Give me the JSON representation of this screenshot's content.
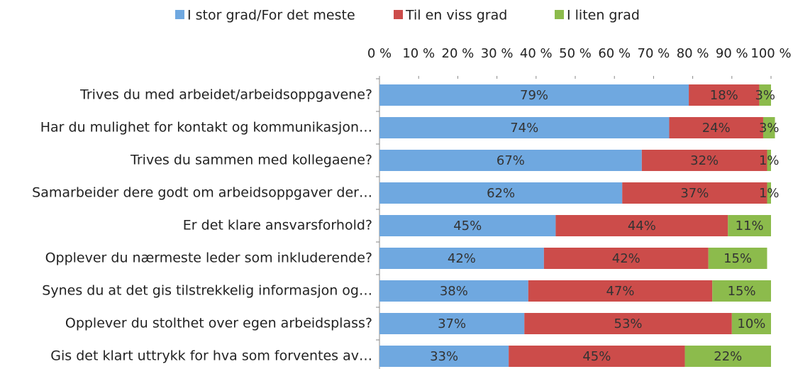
{
  "chart_data": {
    "type": "stacked-bar-horizontal",
    "categories": [
      "Trives du med arbeidet/arbeidsoppgavene?",
      "Har du mulighet for kontakt og kommunikasjon…",
      "Trives du sammen med kollegaene?",
      "Samarbeider dere godt om arbeidsoppgaver der…",
      "Er det klare ansvarsforhold?",
      "Opplever du nærmeste leder som inkluderende?",
      "Synes du at det gis tilstrekkelig informasjon og…",
      "Opplever du stolthet over egen arbeidsplass?",
      "Gis det klart uttrykk for hva som forventes av…"
    ],
    "series": [
      {
        "name": "I stor grad/For det meste",
        "color": "#6fa8e0",
        "values": [
          79,
          74,
          67,
          62,
          45,
          42,
          38,
          37,
          33
        ],
        "value_labels": [
          "79%",
          "74%",
          "67%",
          "62%",
          "45%",
          "42%",
          "38%",
          "37%",
          "33%"
        ]
      },
      {
        "name": "Til en viss grad",
        "color": "#cc4c4a",
        "values": [
          18,
          24,
          32,
          37,
          44,
          42,
          47,
          53,
          45
        ],
        "value_labels": [
          "18%",
          "24%",
          "32%",
          "37%",
          "44%",
          "42%",
          "47%",
          "53%",
          "45%"
        ]
      },
      {
        "name": "I liten grad",
        "color": "#8cbb4c",
        "values": [
          3,
          3,
          1,
          1,
          11,
          15,
          15,
          10,
          22
        ],
        "value_labels": [
          "3%",
          "3%",
          "1%",
          "1%",
          "11%",
          "15%",
          "15%",
          "10%",
          "22%"
        ]
      }
    ],
    "xlim": [
      0,
      100
    ],
    "xticks": [
      {
        "value": 0,
        "label": "0 %"
      },
      {
        "value": 10,
        "label": "10 %"
      },
      {
        "value": 20,
        "label": "20 %"
      },
      {
        "value": 30,
        "label": "30 %"
      },
      {
        "value": 40,
        "label": "40 %"
      },
      {
        "value": 50,
        "label": "50 %"
      },
      {
        "value": 60,
        "label": "60 %"
      },
      {
        "value": 70,
        "label": "70 %"
      },
      {
        "value": 80,
        "label": "80 %"
      },
      {
        "value": 90,
        "label": "90 %"
      },
      {
        "value": 100,
        "label": "100 %"
      }
    ],
    "legend": "top"
  }
}
